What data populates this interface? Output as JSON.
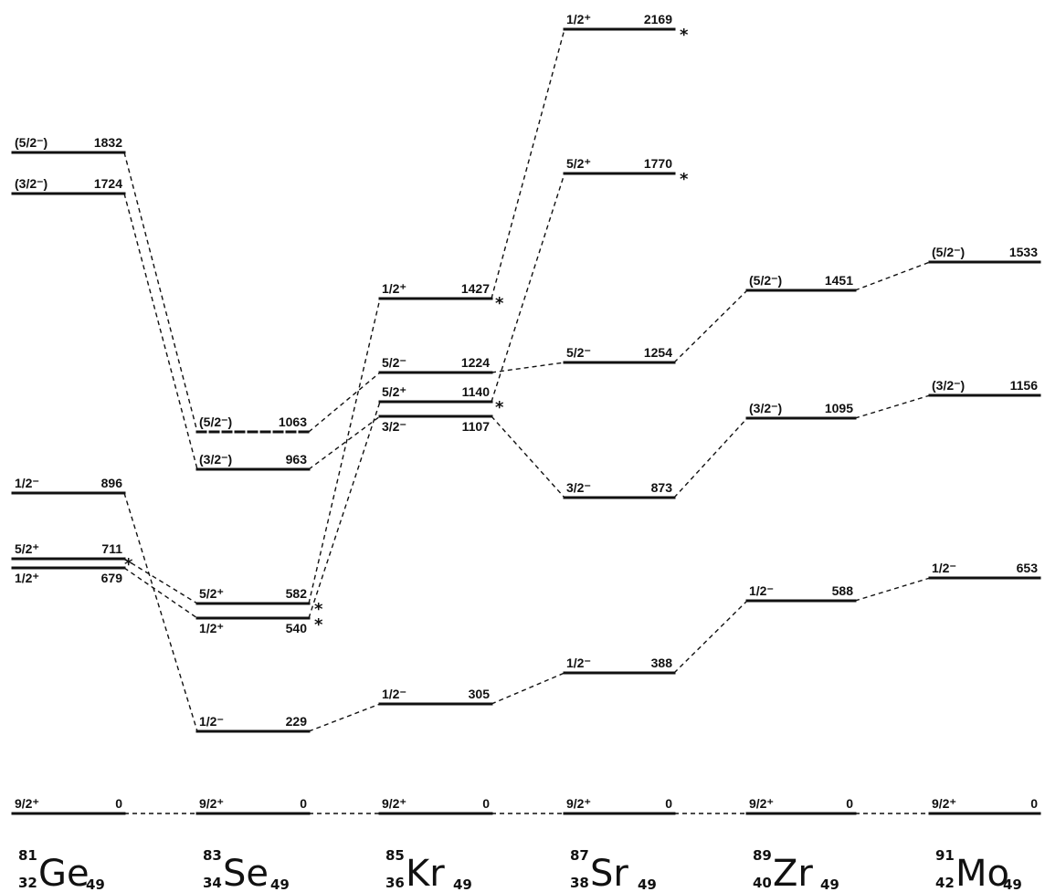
{
  "columns": [
    {
      "id": "ge",
      "mass": "81",
      "z": "32",
      "element": "Ge",
      "n": "49",
      "levels": [
        {
          "spin": "9/2⁺",
          "energy": "0"
        },
        {
          "spin": "1/2⁺",
          "energy": "679",
          "marked": true
        },
        {
          "spin": "5/2⁺",
          "energy": "711"
        },
        {
          "spin": "1/2⁻",
          "energy": "896"
        },
        {
          "spin": "(3/2⁻)",
          "energy": "1724"
        },
        {
          "spin": "(5/2⁻)",
          "energy": "1832"
        }
      ]
    },
    {
      "id": "se",
      "mass": "83",
      "z": "34",
      "element": "Se",
      "n": "49",
      "levels": [
        {
          "spin": "9/2⁺",
          "energy": "0"
        },
        {
          "spin": "1/2⁻",
          "energy": "229"
        },
        {
          "spin": "1/2⁺",
          "energy": "540",
          "marked": true
        },
        {
          "spin": "5/2⁺",
          "energy": "582",
          "marked": true
        },
        {
          "spin": "(3/2⁻)",
          "energy": "963"
        },
        {
          "spin": "(5/2⁻)",
          "energy": "1063",
          "tentative": true
        }
      ]
    },
    {
      "id": "kr",
      "mass": "85",
      "z": "36",
      "element": "Kr",
      "n": "49",
      "levels": [
        {
          "spin": "9/2⁺",
          "energy": "0"
        },
        {
          "spin": "1/2⁻",
          "energy": "305"
        },
        {
          "spin": "3/2⁻",
          "energy": "1107"
        },
        {
          "spin": "5/2⁺",
          "energy": "1140",
          "marked": true
        },
        {
          "spin": "5/2⁻",
          "energy": "1224"
        },
        {
          "spin": "1/2⁺",
          "energy": "1427",
          "marked": true
        }
      ]
    },
    {
      "id": "sr",
      "mass": "87",
      "z": "38",
      "element": "Sr",
      "n": "49",
      "levels": [
        {
          "spin": "9/2⁺",
          "energy": "0"
        },
        {
          "spin": "1/2⁻",
          "energy": "388"
        },
        {
          "spin": "3/2⁻",
          "energy": "873"
        },
        {
          "spin": "5/2⁻",
          "energy": "1254"
        },
        {
          "spin": "5/2⁺",
          "energy": "1770",
          "marked": true
        },
        {
          "spin": "1/2⁺",
          "energy": "2169",
          "marked": true
        }
      ]
    },
    {
      "id": "zr",
      "mass": "89",
      "z": "40",
      "element": "Zr",
      "n": "49",
      "levels": [
        {
          "spin": "9/2⁺",
          "energy": "0"
        },
        {
          "spin": "1/2⁻",
          "energy": "588"
        },
        {
          "spin": "(3/2⁻)",
          "energy": "1095"
        },
        {
          "spin": "(5/2⁻)",
          "energy": "1451"
        }
      ]
    },
    {
      "id": "mo",
      "mass": "91",
      "z": "42",
      "element": "Mo",
      "n": "49",
      "levels": [
        {
          "spin": "9/2⁺",
          "energy": "0"
        },
        {
          "spin": "1/2⁻",
          "energy": "653"
        },
        {
          "spin": "(3/2⁻)",
          "energy": "1156"
        },
        {
          "spin": "(5/2⁻)",
          "energy": "1533"
        }
      ]
    }
  ],
  "connections": [
    [
      "ge",
      "0",
      "se",
      "0"
    ],
    [
      "se",
      "0",
      "kr",
      "0"
    ],
    [
      "kr",
      "0",
      "sr",
      "0"
    ],
    [
      "sr",
      "0",
      "zr",
      "0"
    ],
    [
      "zr",
      "0",
      "mo",
      "0"
    ],
    [
      "ge",
      "896",
      "se",
      "229"
    ],
    [
      "se",
      "229",
      "kr",
      "305"
    ],
    [
      "kr",
      "305",
      "sr",
      "388"
    ],
    [
      "sr",
      "388",
      "zr",
      "588"
    ],
    [
      "zr",
      "588",
      "mo",
      "653"
    ],
    [
      "ge",
      "711",
      "se",
      "582"
    ],
    [
      "ge",
      "679",
      "se",
      "540"
    ],
    [
      "se",
      "582",
      "kr",
      "1427"
    ],
    [
      "se",
      "540",
      "kr",
      "1140"
    ],
    [
      "kr",
      "1427",
      "sr",
      "2169"
    ],
    [
      "kr",
      "1140",
      "sr",
      "1770"
    ],
    [
      "ge",
      "1832",
      "se",
      "1063"
    ],
    [
      "ge",
      "1724",
      "se",
      "963"
    ],
    [
      "se",
      "1063",
      "kr",
      "1224"
    ],
    [
      "se",
      "963",
      "kr",
      "1107"
    ],
    [
      "kr",
      "1224",
      "sr",
      "1254"
    ],
    [
      "kr",
      "1107",
      "sr",
      "873"
    ],
    [
      "sr",
      "1254",
      "zr",
      "1451"
    ],
    [
      "sr",
      "873",
      "zr",
      "1095"
    ],
    [
      "zr",
      "1451",
      "mo",
      "1533"
    ],
    [
      "zr",
      "1095",
      "mo",
      "1156"
    ]
  ],
  "marker_symbol": "*"
}
